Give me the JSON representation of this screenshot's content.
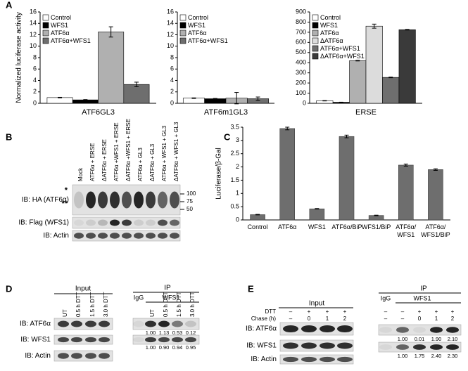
{
  "panel_labels": [
    "A",
    "B",
    "C",
    "D",
    "E"
  ],
  "chart_data": [
    {
      "type": "bar",
      "y_label": "Normalized luciferase activity",
      "categories": [
        "ATF6GL3"
      ],
      "ylim": [
        0,
        16
      ],
      "yticks": [
        0,
        2,
        4,
        6,
        8,
        10,
        12,
        14,
        16
      ],
      "legend": "upper left",
      "series": [
        {
          "name": "Control",
          "color": "#ffffff",
          "values": [
            1.0
          ],
          "errors": [
            0.05
          ]
        },
        {
          "name": "WFS1",
          "color": "#000000",
          "values": [
            0.6
          ],
          "errors": [
            0.05
          ]
        },
        {
          "name": "ATF6α",
          "color": "#b0b0b0",
          "values": [
            12.5
          ],
          "errors": [
            0.9
          ]
        },
        {
          "name": "ATF6α+WFS1",
          "color": "#6e6e6e",
          "values": [
            3.3
          ],
          "errors": [
            0.4
          ]
        }
      ]
    },
    {
      "type": "bar",
      "categories": [
        "ATF6m1GL3"
      ],
      "ylim": [
        0,
        16
      ],
      "yticks": [
        0,
        2,
        4,
        6,
        8,
        10,
        12,
        14,
        16
      ],
      "legend": "upper left",
      "series": [
        {
          "name": "Control",
          "color": "#ffffff",
          "values": [
            0.9
          ],
          "errors": [
            0.05
          ]
        },
        {
          "name": "WFS1",
          "color": "#000000",
          "values": [
            0.8
          ],
          "errors": [
            0.05
          ]
        },
        {
          "name": "ATF6α",
          "color": "#b0b0b0",
          "values": [
            0.9
          ],
          "errors": [
            1.0
          ]
        },
        {
          "name": "ATF6α+WFS1",
          "color": "#6e6e6e",
          "values": [
            0.8
          ],
          "errors": [
            0.3
          ]
        }
      ]
    },
    {
      "type": "bar",
      "categories": [
        "ERSE"
      ],
      "ylim": [
        0,
        900
      ],
      "yticks": [
        0,
        100,
        200,
        300,
        400,
        500,
        600,
        700,
        800,
        900
      ],
      "legend": "upper left",
      "series": [
        {
          "name": "Control",
          "color": "#ffffff",
          "values": [
            25
          ],
          "errors": [
            2
          ]
        },
        {
          "name": "WFS1",
          "color": "#000000",
          "values": [
            10
          ],
          "errors": [
            1
          ]
        },
        {
          "name": "ATF6α",
          "color": "#b0b0b0",
          "values": [
            420
          ],
          "errors": [
            3
          ]
        },
        {
          "name": "ΔATF6α",
          "color": "#dcdcdc",
          "values": [
            760
          ],
          "errors": [
            20
          ]
        },
        {
          "name": "ATF6α+WFS1",
          "color": "#6e6e6e",
          "values": [
            255
          ],
          "errors": [
            3
          ]
        },
        {
          "name": "ΔATF6α+WFS1",
          "color": "#3a3a3a",
          "values": [
            725
          ],
          "errors": [
            3
          ]
        }
      ]
    },
    {
      "type": "bar",
      "y_label": "Luciferase/β-Gal",
      "categories": [
        "Control",
        "ATF6α",
        "WFS1",
        "ATF6α/BiP",
        "WFS1/BiP",
        "ATF6α/\nWFS1",
        "ATF6α/\nWFS1/BiP"
      ],
      "values": [
        0.2,
        3.45,
        0.42,
        3.15,
        0.17,
        2.07,
        1.9
      ],
      "errors": [
        0.01,
        0.05,
        0.01,
        0.05,
        0.01,
        0.04,
        0.03
      ],
      "color": "#6e6e6e",
      "ylim": [
        0,
        3.5
      ],
      "yticks": [
        0,
        0.5,
        1,
        1.5,
        2,
        2.5,
        3,
        3.5
      ]
    }
  ],
  "blot_b": {
    "lanes": [
      "Mock",
      "ATF6α + ERSE",
      "ΔATF6α + ERSE",
      "ATF6α +WFS1 + ERSE",
      "ΔATF6α +WFS1 + ERSE",
      "ATF6α + GL3",
      "ΔATF6α + GL3",
      "ATF6α + WFS1 + GL3",
      "ΔATF6α + WFS1 + GL3"
    ],
    "rows": [
      "IB: HA (ATF6α)",
      "IB: Flag (WFS1)",
      "IB: Actin"
    ],
    "markers": [
      "100",
      "75",
      "50"
    ],
    "band_marks": [
      "*",
      "**"
    ]
  },
  "blot_d": {
    "input_title": "Input",
    "ip_title": "IP",
    "ip_groups": [
      "IgG",
      "WFS1"
    ],
    "input_lanes": [
      "UT",
      "0.5 h DTT",
      "1.5 h DTT",
      "3.0 h DTT"
    ],
    "ip_lanes": [
      "UT",
      "0.5 h DTT",
      "1.5 h DTT",
      "3.0 h DTT"
    ],
    "rows": [
      "IB: ATF6α",
      "IB: WFS1",
      "IB: Actin"
    ],
    "quant": [
      [
        "1.00",
        "1.13",
        "0.53",
        "0.12"
      ],
      [
        "1.00",
        "0.90",
        "0.94",
        "0.95"
      ]
    ]
  },
  "blot_e": {
    "input_title": "Input",
    "ip_title": "IP",
    "ip_groups": [
      "IgG",
      "WFS1"
    ],
    "condition_labels": [
      "DTT",
      "Chase (h)"
    ],
    "input_conditions": [
      [
        "–",
        "+",
        "+",
        "+"
      ],
      [
        "–",
        "0",
        "1",
        "2"
      ]
    ],
    "ip_conditions": [
      [
        "–",
        "–",
        "+",
        "+",
        "+"
      ],
      [
        "–",
        "–",
        "0",
        "1",
        "2"
      ]
    ],
    "rows": [
      "IB: ATF6α",
      "IB: WFS1",
      "IB: Actin"
    ],
    "quant": [
      [
        "1.00",
        "0.01",
        "1.90",
        "2.10"
      ],
      [
        "1.00",
        "1.75",
        "2.40",
        "2.30"
      ]
    ]
  }
}
